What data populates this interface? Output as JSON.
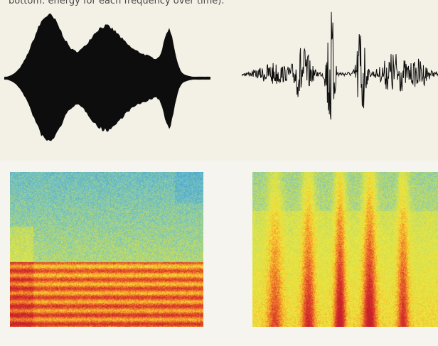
{
  "caption": "bottom: energy for each frequency over time).",
  "colors": {
    "waveform": "#0d0d0d",
    "spectrogram_scale": [
      "#4aa6d6",
      "#7fc7b8",
      "#c9de5a",
      "#f2e83a",
      "#f5a02a",
      "#e3502a",
      "#c8202a"
    ]
  }
}
